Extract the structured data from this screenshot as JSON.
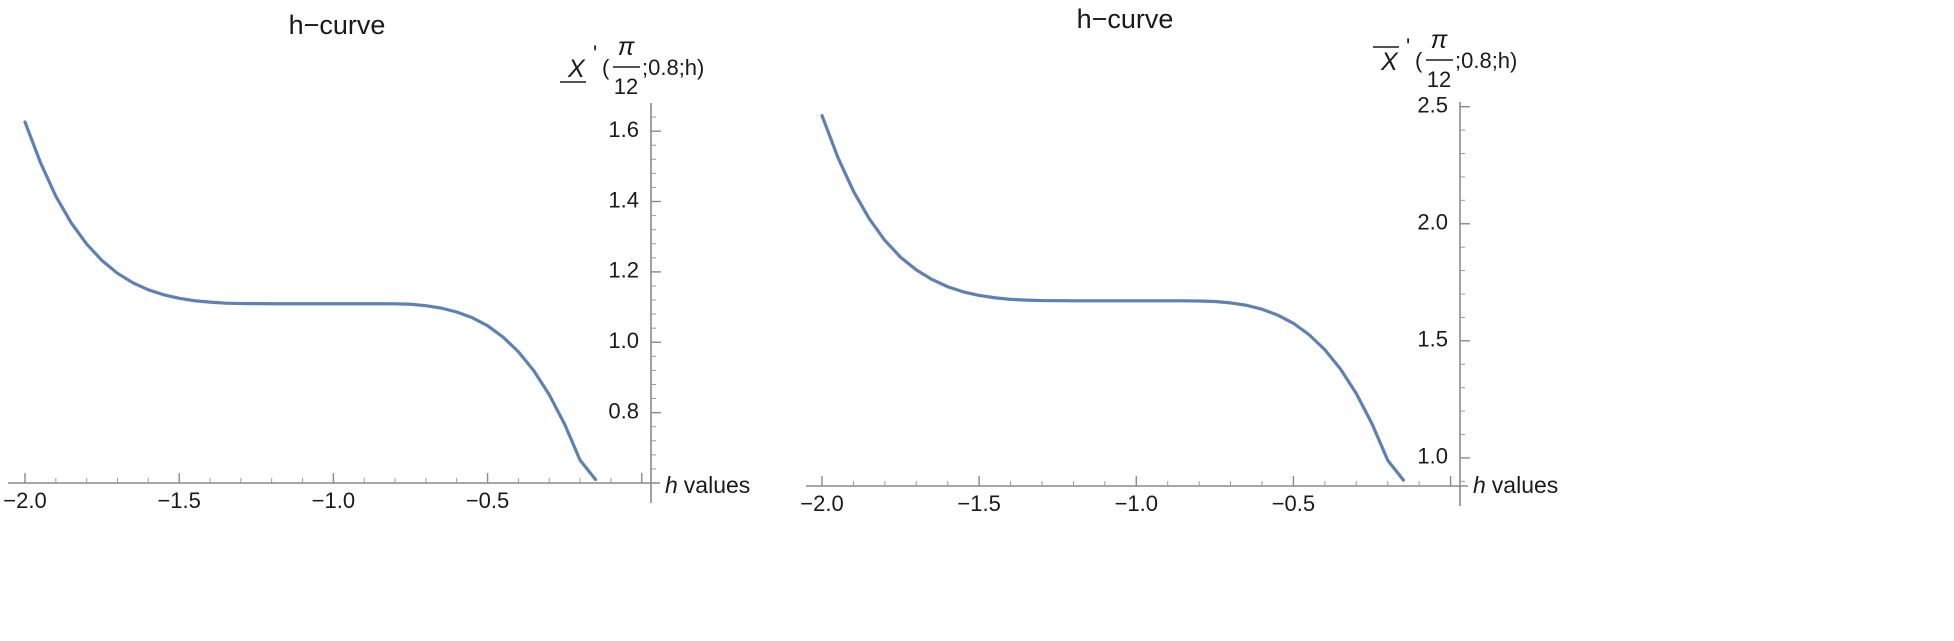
{
  "chart_data": [
    {
      "type": "line",
      "title": "h−curve",
      "xlabel": {
        "var": "h",
        "text": "values"
      },
      "ylabel": {
        "var": "X",
        "bar": "under",
        "prime": "'",
        "open": "(",
        "num": "π",
        "den": "12",
        "rest": ";0.8;h)"
      },
      "xlim": [
        -2.05,
        0
      ],
      "ylim": [
        0.6,
        1.68
      ],
      "xticks": [
        {
          "value": -2.0,
          "label": "−2.0"
        },
        {
          "value": -1.5,
          "label": "−1.5"
        },
        {
          "value": -1.0,
          "label": "−1.0"
        },
        {
          "value": -0.5,
          "label": "−0.5"
        }
      ],
      "yticks": [
        {
          "value": 0.8,
          "label": "0.8"
        },
        {
          "value": 1.0,
          "label": "1.0"
        },
        {
          "value": 1.2,
          "label": "1.2"
        },
        {
          "value": 1.4,
          "label": "1.4"
        },
        {
          "value": 1.6,
          "label": "1.6"
        }
      ],
      "color": "#5e81b5",
      "series": [
        {
          "x": [
            -2.0,
            -1.95,
            -1.9,
            -1.85,
            -1.8,
            -1.75,
            -1.7,
            -1.65,
            -1.6,
            -1.55,
            -1.5,
            -1.45,
            -1.4,
            -1.35,
            -1.3,
            -1.25,
            -1.2,
            -1.15,
            -1.1,
            -1.05,
            -1.0,
            -0.95,
            -0.9,
            -0.85,
            -0.8,
            -0.75,
            -0.7,
            -0.65,
            -0.6,
            -0.55,
            -0.5,
            -0.45,
            -0.4,
            -0.35,
            -0.3,
            -0.25,
            -0.2,
            -0.15
          ],
          "y": [
            1.626,
            1.511,
            1.415,
            1.339,
            1.279,
            1.232,
            1.196,
            1.169,
            1.149,
            1.135,
            1.125,
            1.118,
            1.114,
            1.111,
            1.11,
            1.1097,
            1.1095,
            1.1095,
            1.1095,
            1.1095,
            1.1095,
            1.1095,
            1.1095,
            1.1095,
            1.1093,
            1.108,
            1.104,
            1.097,
            1.086,
            1.07,
            1.047,
            1.015,
            0.973,
            0.919,
            0.851,
            0.767,
            0.665,
            0.61
          ]
        }
      ]
    },
    {
      "type": "line",
      "title": "h−curve",
      "xlabel": {
        "var": "h",
        "text": "values"
      },
      "ylabel": {
        "var": "X",
        "bar": "over",
        "prime": "'",
        "open": "(",
        "num": "π",
        "den": "12",
        "rest": ";0.8;h)"
      },
      "xlim": [
        -2.05,
        0
      ],
      "ylim": [
        0.88,
        2.52
      ],
      "xticks": [
        {
          "value": -2.0,
          "label": "−2.0"
        },
        {
          "value": -1.5,
          "label": "−1.5"
        },
        {
          "value": -1.0,
          "label": "−1.0"
        },
        {
          "value": -0.5,
          "label": "−0.5"
        }
      ],
      "yticks": [
        {
          "value": 1.0,
          "label": "1.0"
        },
        {
          "value": 1.5,
          "label": "1.5"
        },
        {
          "value": 2.0,
          "label": "2.0"
        },
        {
          "value": 2.5,
          "label": "2.5"
        }
      ],
      "color": "#5e81b5",
      "series": [
        {
          "x": [
            -2.0,
            -1.95,
            -1.9,
            -1.85,
            -1.8,
            -1.75,
            -1.7,
            -1.65,
            -1.6,
            -1.55,
            -1.5,
            -1.45,
            -1.4,
            -1.35,
            -1.3,
            -1.25,
            -1.2,
            -1.15,
            -1.1,
            -1.05,
            -1.0,
            -0.95,
            -0.9,
            -0.85,
            -0.8,
            -0.75,
            -0.7,
            -0.65,
            -0.6,
            -0.55,
            -0.5,
            -0.45,
            -0.4,
            -0.35,
            -0.3,
            -0.25,
            -0.2,
            -0.15
          ],
          "y": [
            2.462,
            2.285,
            2.139,
            2.022,
            1.929,
            1.857,
            1.803,
            1.762,
            1.731,
            1.709,
            1.694,
            1.684,
            1.677,
            1.674,
            1.672,
            1.6715,
            1.671,
            1.671,
            1.671,
            1.671,
            1.671,
            1.671,
            1.671,
            1.671,
            1.67,
            1.668,
            1.662,
            1.652,
            1.635,
            1.61,
            1.575,
            1.526,
            1.462,
            1.379,
            1.275,
            1.146,
            0.99,
            0.905
          ]
        }
      ]
    }
  ]
}
